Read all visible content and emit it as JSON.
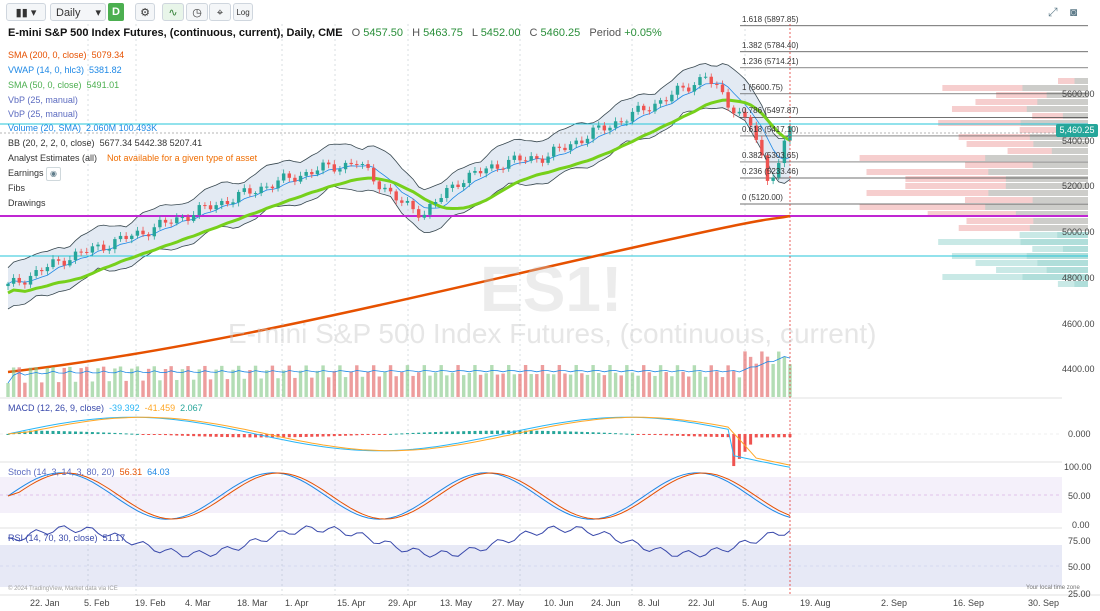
{
  "toolbar": {
    "interval": "Daily",
    "d_badge": "D",
    "log_label": "Log"
  },
  "header": {
    "title": "E-mini S&P 500 Index Futures, (continuous, current), Daily, CME",
    "open_label": "O",
    "open": "5457.50",
    "high_label": "H",
    "high": "5463.75",
    "low_label": "L",
    "low": "5452.00",
    "close_label": "C",
    "close": "5460.25",
    "period_label": "Period",
    "period": "+0.05%"
  },
  "studies": [
    {
      "name": "SMA (200, 0, close)",
      "value": "5079.34",
      "color": "#e65100"
    },
    {
      "name": "VWAP (14, 0, hlc3)",
      "value": "5381.82",
      "color": "#1e88e5"
    },
    {
      "name": "SMA (50, 0, close)",
      "value": "5491.01",
      "color": "#4caf50"
    },
    {
      "name": "VbP (25, manual)",
      "value": "",
      "color": "#5c6bc0"
    },
    {
      "name": "VbP (25, manual)",
      "value": "",
      "color": "#5c6bc0"
    },
    {
      "name": "Volume (20, SMA)",
      "value": "2.060M 100.493K",
      "color": "#1e88e5"
    },
    {
      "name": "BB (20, 2, 2, 0, close)",
      "value": "5677.34 5442.38 5207.41",
      "color": "#444444"
    },
    {
      "name": "Analyst Estimates (all)",
      "value": "Not available for a given type of asset",
      "color": "#444444"
    },
    {
      "name": "Earnings",
      "value": "",
      "color": "#444444"
    },
    {
      "name": "Fibs",
      "value": "",
      "color": "#444444"
    },
    {
      "name": "Drawings",
      "value": "",
      "color": "#444444"
    }
  ],
  "watermark": {
    "symbol": "ES1!",
    "name": "E-mini S&P 500 Index Futures, (continuous, current)"
  },
  "price_axis": [
    "5600.00",
    "5400.00",
    "5200.00",
    "5000.00",
    "4800.00",
    "4600.00",
    "4400.00"
  ],
  "last_price": "5,460.25",
  "fibs": [
    {
      "label": "1.618 (5897.85)",
      "price": 5897.85
    },
    {
      "label": "1.382 (5784.40)",
      "price": 5784.4
    },
    {
      "label": "1.236 (5714.21)",
      "price": 5714.21
    },
    {
      "label": "1 (5600.75)",
      "price": 5600.75
    },
    {
      "label": "0.786 (5497.87)",
      "price": 5497.87
    },
    {
      "label": "0.618 (5417.10)",
      "price": 5417.1
    },
    {
      "label": "0.382 (5303.65)",
      "price": 5303.65
    },
    {
      "label": "0.236 (5233.46)",
      "price": 5233.46
    },
    {
      "label": "0 (5120.00)",
      "price": 5120.0
    }
  ],
  "macd": {
    "name": "MACD (12, 26, 9, close)",
    "v1": "-39.392",
    "v2": "-41.459",
    "v3": "2.067",
    "axis": [
      "0.000"
    ]
  },
  "stoch": {
    "name": "Stoch (14, 3, 14, 3, 80, 20)",
    "v1": "56.31",
    "v2": "64.03",
    "axis": [
      "100.00",
      "50.00",
      "0.00"
    ]
  },
  "rsi": {
    "name": "RSI (14, 70, 30, close)",
    "value": "51.17",
    "axis": [
      "75.00",
      "50.00",
      "25.00"
    ]
  },
  "x_axis": [
    "22. Jan",
    "5. Feb",
    "19. Feb",
    "4. Mar",
    "18. Mar",
    "1. Apr",
    "15. Apr",
    "29. Apr",
    "13. May",
    "27. May",
    "10. Jun",
    "24. Jun",
    "8. Jul",
    "22. Jul",
    "5. Aug",
    "19. Aug",
    "2. Sep",
    "16. Sep",
    "30. Sep"
  ],
  "footer": {
    "credit": "© 2024 TradingView, Market data via ICE",
    "timezone": "Your local time zone"
  }
}
